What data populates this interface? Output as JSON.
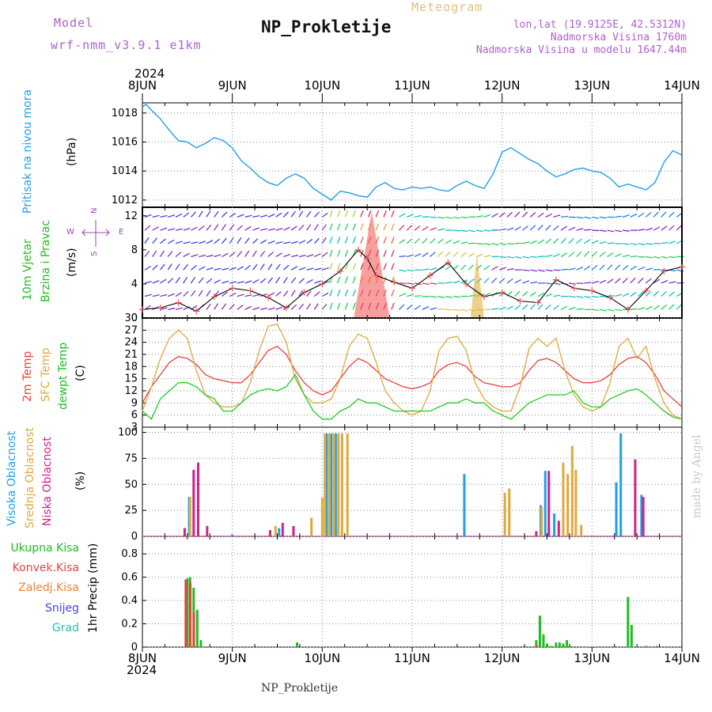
{
  "header": {
    "model_label": "Model",
    "model_name": "wrf-nmm_v3.9.1 e1km",
    "title": "NP_Prokletije",
    "meteogram": "Meteogram",
    "lonlat": "lon,lat (19.9125E, 42.5312N)",
    "elevation": "Nadmorska Visina 1760m",
    "model_elevation": "Nadmorska Visina u modelu 1647.44m",
    "year_top": "2024",
    "year_bottom": "2024",
    "footer": "NP_Prokletije",
    "made_by": "made by Angel"
  },
  "colors": {
    "pressure": "#1ea0e6",
    "temp2m": "#e8413c",
    "sfc": "#e0a83c",
    "dewpt": "#22cc22",
    "high": "#1ea0e6",
    "mid": "#e0a83c",
    "low": "#d0208c",
    "total": "#22bb22",
    "conv": "#e8413c",
    "strat": "#f08030",
    "snow": "#4444dd",
    "grad": "#22c0b0",
    "wind_title": "#22bb22",
    "compass": "#a040c0",
    "header": "#b060d0"
  },
  "dates": [
    "8JUN",
    "9JUN",
    "10JUN",
    "11JUN",
    "12JUN",
    "13JUN",
    "14JUN"
  ],
  "panels": {
    "pressure": {
      "label": "Pritisak na nivou mora",
      "unit": "(hPa)"
    },
    "wind": {
      "label1": "10m Vjetar",
      "label2": "Brzina i Pravac",
      "unit": "(m/s)",
      "compass_n": "N",
      "compass_s": "S",
      "compass_w": "W",
      "compass_e": "E"
    },
    "temp": {
      "l1": "2m Temp",
      "l2": "SFC Temp",
      "l3": "dewpt Temp",
      "unit": "(C)"
    },
    "cloud": {
      "l1": "Visoka Oblacnost",
      "l2": "Srednja Oblacnost",
      "l3": "Niska Oblacnost",
      "unit": "(%)"
    },
    "precip": {
      "unit_label": "1hr Precip (mm)",
      "legend": [
        "Ukupna Kisa",
        "Konvek.Kisa",
        "Zaledj.Kisa",
        "Snijeg",
        "Grad"
      ]
    }
  },
  "chart_data": [
    {
      "type": "line",
      "title": "Pritisak na nivou mora",
      "ylabel": "(hPa)",
      "ylim": [
        1011.5,
        1018.7
      ],
      "yticks": [
        1012,
        1014,
        1016,
        1018
      ],
      "x_days": [
        0,
        0.04,
        0.1,
        0.2,
        0.3,
        0.4,
        0.5,
        0.6,
        0.7,
        0.8,
        0.9,
        1.0,
        1.1,
        1.2,
        1.3,
        1.4,
        1.5,
        1.6,
        1.7,
        1.8,
        1.9,
        2.0,
        2.1,
        2.2,
        2.3,
        2.4,
        2.5,
        2.6,
        2.7,
        2.8,
        2.9,
        3.0,
        3.1,
        3.2,
        3.3,
        3.4,
        3.5,
        3.6,
        3.7,
        3.8,
        3.9,
        4.0,
        4.1,
        4.2,
        4.3,
        4.4,
        4.5,
        4.6,
        4.7,
        4.8,
        4.9,
        5.0,
        5.1,
        5.2,
        5.3,
        5.4,
        5.5,
        5.6,
        5.7,
        5.8,
        5.9,
        6.0
      ],
      "series": [
        {
          "name": "Pritisak na nivou mora",
          "values": [
            1018.4,
            1018.6,
            1018.2,
            1017.6,
            1016.8,
            1016.1,
            1016.0,
            1015.6,
            1015.9,
            1016.3,
            1016.1,
            1015.6,
            1014.7,
            1014.2,
            1013.6,
            1013.2,
            1013.0,
            1013.5,
            1013.8,
            1013.5,
            1012.8,
            1012.4,
            1012.0,
            1012.6,
            1012.5,
            1012.3,
            1012.2,
            1012.9,
            1013.2,
            1012.8,
            1012.7,
            1012.9,
            1012.8,
            1012.9,
            1012.7,
            1012.6,
            1013.0,
            1013.3,
            1013.0,
            1012.8,
            1013.8,
            1015.3,
            1015.6,
            1015.2,
            1014.8,
            1014.5,
            1014.0,
            1013.6,
            1013.8,
            1014.1,
            1014.2,
            1014.0,
            1013.9,
            1013.5,
            1012.9,
            1013.1,
            1012.9,
            1012.7,
            1013.2,
            1014.6,
            1015.4,
            1015.1
          ]
        }
      ]
    },
    {
      "type": "line",
      "title": "10m Vjetar Brzina i Pravac",
      "ylabel": "(m/s)",
      "ylim": [
        0,
        13
      ],
      "yticks": [
        0,
        4,
        8,
        12
      ],
      "x_days": [
        0,
        0.2,
        0.4,
        0.6,
        0.8,
        1.0,
        1.2,
        1.4,
        1.6,
        1.8,
        2.0,
        2.2,
        2.4,
        2.5,
        2.6,
        2.8,
        3.0,
        3.2,
        3.4,
        3.6,
        3.8,
        4.0,
        4.2,
        4.4,
        4.6,
        4.8,
        5.0,
        5.2,
        5.4,
        5.6,
        5.8,
        6.0
      ],
      "series": [
        {
          "name": "10m Vjetar",
          "values": [
            1.0,
            1.2,
            1.8,
            0.8,
            2.5,
            3.5,
            3.2,
            2.4,
            1.2,
            3.0,
            4.0,
            5.5,
            8.0,
            7.0,
            5.0,
            4.2,
            3.5,
            5.0,
            6.5,
            4.0,
            2.5,
            3.0,
            2.0,
            1.8,
            4.5,
            3.5,
            3.2,
            2.4,
            1.0,
            3.2,
            5.5,
            6.0
          ]
        }
      ]
    },
    {
      "type": "line",
      "title": "2m Temp / SFC Temp / dewpt Temp",
      "ylabel": "(C)",
      "ylim": [
        3,
        30
      ],
      "yticks": [
        3,
        6,
        9,
        12,
        15,
        18,
        21,
        24,
        27,
        30
      ],
      "x_days": [
        0,
        0.1,
        0.2,
        0.3,
        0.4,
        0.5,
        0.6,
        0.7,
        0.8,
        0.9,
        1.0,
        1.1,
        1.2,
        1.3,
        1.4,
        1.5,
        1.6,
        1.7,
        1.8,
        1.9,
        2.0,
        2.1,
        2.2,
        2.3,
        2.4,
        2.5,
        2.6,
        2.7,
        2.8,
        2.9,
        3.0,
        3.1,
        3.2,
        3.3,
        3.4,
        3.5,
        3.6,
        3.7,
        3.8,
        3.9,
        4.0,
        4.1,
        4.2,
        4.3,
        4.4,
        4.5,
        4.6,
        4.7,
        4.8,
        4.9,
        5.0,
        5.1,
        5.2,
        5.3,
        5.4,
        5.5,
        5.6,
        5.7,
        5.8,
        5.9,
        6.0
      ],
      "series": [
        {
          "name": "2m Temp",
          "values": [
            9,
            13,
            16,
            19,
            20.5,
            20,
            18.5,
            16,
            15,
            14.5,
            14,
            14,
            16,
            19,
            22,
            23,
            21,
            17,
            14,
            12,
            11,
            12,
            15,
            18,
            20,
            19,
            17,
            15,
            14,
            13,
            12.5,
            13,
            14,
            17,
            18.5,
            19,
            18,
            15.5,
            14,
            13.5,
            13,
            13,
            14,
            17,
            19.5,
            20,
            19,
            17,
            15,
            14,
            14,
            14.5,
            16,
            18.5,
            20,
            20.5,
            19,
            16,
            12,
            10,
            8
          ]
        },
        {
          "name": "SFC Temp",
          "values": [
            7,
            13,
            20,
            25,
            27,
            25,
            17,
            11,
            9,
            8,
            8,
            9,
            14,
            22,
            28,
            28.5,
            24,
            15,
            11,
            9,
            9,
            10,
            15,
            23,
            26,
            25,
            19,
            12,
            9,
            7,
            6,
            7,
            12,
            22,
            25,
            25.5,
            22,
            14,
            10,
            8,
            7,
            7,
            13,
            22.5,
            25,
            23,
            25,
            17,
            11,
            8,
            7,
            8,
            14,
            23,
            25,
            20,
            23,
            15,
            9,
            6,
            5
          ]
        },
        {
          "name": "dewpt Temp",
          "values": [
            7,
            5,
            10,
            12,
            14,
            14,
            13,
            11,
            10,
            7,
            7,
            9,
            11,
            12,
            12.5,
            12,
            13,
            16,
            11,
            7,
            5,
            5,
            7,
            8,
            10,
            9,
            9,
            8,
            7,
            7,
            7,
            7,
            7,
            8,
            9,
            9,
            10,
            9,
            9,
            7,
            6,
            5,
            7,
            9,
            10,
            11,
            11,
            11,
            12,
            9,
            8,
            8,
            10,
            11,
            12,
            12.5,
            11,
            9,
            7,
            5.5,
            5
          ]
        }
      ]
    },
    {
      "type": "bar",
      "title": "Visoka / Srednja / Niska Oblacnost",
      "ylabel": "(%)",
      "ylim": [
        0,
        105
      ],
      "yticks": [
        0,
        25,
        50,
        75,
        100
      ],
      "series": [
        {
          "name": "Visoka Oblacnost",
          "x_days": [
            0.52,
            1.0,
            1.52,
            2.05,
            2.1,
            2.15,
            3.58,
            4.43,
            4.48,
            4.58,
            5.27,
            5.32,
            5.55
          ],
          "values": [
            38,
            2,
            8,
            99,
            99,
            99,
            60,
            30,
            63,
            22,
            52,
            99,
            40
          ]
        },
        {
          "name": "Srednja Oblacnost",
          "x_days": [
            0.53,
            1.48,
            1.88,
            2.0,
            2.03,
            2.08,
            2.13,
            2.18,
            2.22,
            2.28,
            4.03,
            4.08,
            4.44,
            4.68,
            4.73,
            4.78,
            4.82,
            4.88
          ],
          "values": [
            38,
            10,
            18,
            37,
            99,
            99,
            99,
            99,
            99,
            99,
            42,
            46,
            28,
            71,
            60,
            87,
            64,
            11
          ]
        },
        {
          "name": "Niska Oblacnost",
          "x_days": [
            0.47,
            0.57,
            0.62,
            0.72,
            1.42,
            1.56,
            1.68,
            4.38,
            4.52,
            4.63,
            5.48,
            5.57
          ],
          "values": [
            8,
            64,
            71,
            10,
            6,
            13,
            10,
            5,
            63,
            15,
            74,
            38
          ]
        }
      ]
    },
    {
      "type": "bar",
      "title": "1hr Precip",
      "ylabel": "1hr Precip (mm)",
      "ylim": [
        0,
        0.95
      ],
      "yticks": [
        0,
        0.2,
        0.4,
        0.6,
        0.8
      ],
      "series": [
        {
          "name": "Ukupna Kisa",
          "x_days": [
            0.5,
            0.53,
            0.57,
            0.61,
            0.65,
            1.72,
            4.38,
            4.42,
            4.46,
            4.5,
            4.55,
            4.6,
            4.64,
            4.68,
            4.72,
            4.76,
            5.4,
            5.44,
            5.6,
            5.72
          ],
          "values": [
            0.59,
            0.6,
            0.51,
            0.32,
            0.06,
            0.04,
            0.06,
            0.27,
            0.11,
            0.03,
            0.01,
            0.04,
            0.04,
            0.03,
            0.06,
            0.01,
            0.43,
            0.19,
            0.01,
            0.01
          ]
        },
        {
          "name": "Konvek.Kisa",
          "x_days": [
            0.5,
            0.55,
            0.59,
            4.4
          ],
          "values": [
            0.58,
            0.55,
            0.3,
            0.02
          ]
        }
      ]
    }
  ]
}
